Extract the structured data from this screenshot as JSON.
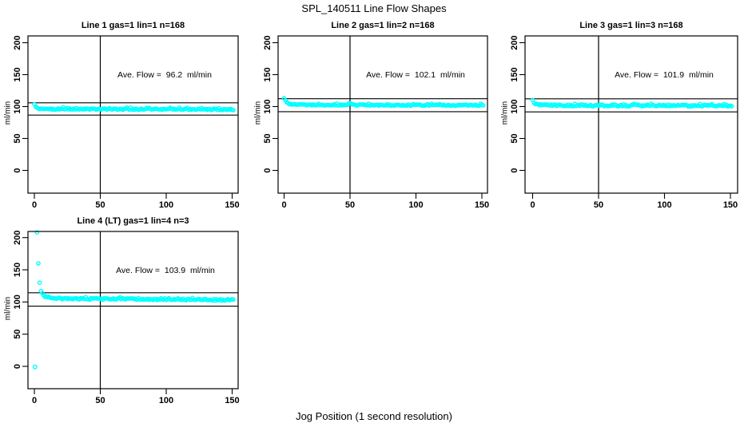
{
  "figure": {
    "title": "SPL_140511  Line Flow Shapes",
    "xlabel": "Jog Position (1 second resolution)",
    "point_color": "#00FFFF",
    "line_color": "#000000",
    "background_color": "#FFFFFF"
  },
  "chart_data": [
    {
      "type": "scatter",
      "title": "Line 1 gas=1 lin=1 n=168",
      "ylabel": "ml/min",
      "ave_flow": 96.2,
      "ave_flow_label": "Ave. Flow =  96.2  ml/min",
      "n": 168,
      "marker": "open-circle",
      "x_ticks": [
        0,
        50,
        100,
        150
      ],
      "y_ticks": [
        0,
        50,
        100,
        150,
        200
      ],
      "xlim": [
        -5,
        155
      ],
      "ylim": [
        -36,
        211
      ],
      "h_ref_lines": [
        105.8,
        86.6
      ],
      "v_ref_line": 50,
      "series_keypoints": [
        [
          0,
          102.5
        ],
        [
          1,
          100
        ],
        [
          2,
          98
        ],
        [
          4,
          96.8
        ],
        [
          8,
          96.1
        ],
        [
          60,
          95.9
        ],
        [
          100,
          95.7
        ],
        [
          151,
          95.3
        ]
      ],
      "outliers": [],
      "band_jitter": 1.0,
      "spike": 1.8,
      "jitter_cutoff": 115
    },
    {
      "type": "scatter",
      "title": "Line 2 gas=1 lin=2 n=168",
      "ylabel": "ml/min",
      "ave_flow": 102.1,
      "ave_flow_label": "Ave. Flow =  102.1  ml/min",
      "n": 168,
      "marker": "open-circle",
      "x_ticks": [
        0,
        50,
        100,
        150
      ],
      "y_ticks": [
        0,
        50,
        100,
        150,
        200
      ],
      "xlim": [
        -5,
        155
      ],
      "ylim": [
        -36,
        211
      ],
      "h_ref_lines": [
        112.3,
        91.9
      ],
      "v_ref_line": 50,
      "series_keypoints": [
        [
          0,
          111
        ],
        [
          1,
          108.5
        ],
        [
          2,
          106
        ],
        [
          4,
          104
        ],
        [
          7,
          103.2
        ],
        [
          15,
          102.8
        ],
        [
          60,
          102.4
        ],
        [
          151,
          101.9
        ]
      ],
      "outliers": [],
      "band_jitter": 1.0,
      "spike": 1.6,
      "jitter_cutoff": 115
    },
    {
      "type": "scatter",
      "title": "Line 3 gas=1 lin=3 n=168",
      "ylabel": "ml/min",
      "ave_flow": 101.9,
      "ave_flow_label": "Ave. Flow =  101.9  ml/min",
      "n": 168,
      "marker": "open-circle",
      "x_ticks": [
        0,
        50,
        100,
        150
      ],
      "y_ticks": [
        0,
        50,
        100,
        150,
        200
      ],
      "xlim": [
        -5,
        155
      ],
      "ylim": [
        -36,
        211
      ],
      "h_ref_lines": [
        112.1,
        91.7
      ],
      "v_ref_line": 50,
      "series_keypoints": [
        [
          0,
          110
        ],
        [
          1,
          107
        ],
        [
          2,
          105
        ],
        [
          4,
          103
        ],
        [
          8,
          102
        ],
        [
          60,
          101.6
        ],
        [
          151,
          101.2
        ]
      ],
      "outliers": [],
      "band_jitter": 1.4,
      "spike": 1.5,
      "jitter_cutoff": 115
    },
    {
      "type": "scatter",
      "title": "Line 4 (LT) gas=1 lin=4 n=3",
      "ylabel": "ml/min",
      "ave_flow": 103.9,
      "ave_flow_label": "Ave. Flow =  103.9  ml/min",
      "n": 3,
      "marker": "open-circle",
      "x_ticks": [
        0,
        50,
        100,
        150
      ],
      "y_ticks": [
        0,
        50,
        100,
        150,
        200
      ],
      "xlim": [
        -5,
        155
      ],
      "ylim": [
        -36,
        211
      ],
      "h_ref_lines": [
        114.3,
        93.5
      ],
      "v_ref_line": 50,
      "series_keypoints": [
        [
          2,
          208
        ],
        [
          3,
          160
        ],
        [
          4,
          130
        ],
        [
          5,
          117
        ],
        [
          7,
          110.5
        ],
        [
          9,
          108
        ],
        [
          12,
          106.5
        ],
        [
          20,
          105.3
        ],
        [
          60,
          104.6
        ],
        [
          110,
          103.9
        ],
        [
          151,
          103.2
        ]
      ],
      "outliers": [
        [
          0.5,
          -1
        ]
      ],
      "band_jitter": 1.3,
      "spike": 1.4,
      "jitter_cutoff": 110
    }
  ]
}
